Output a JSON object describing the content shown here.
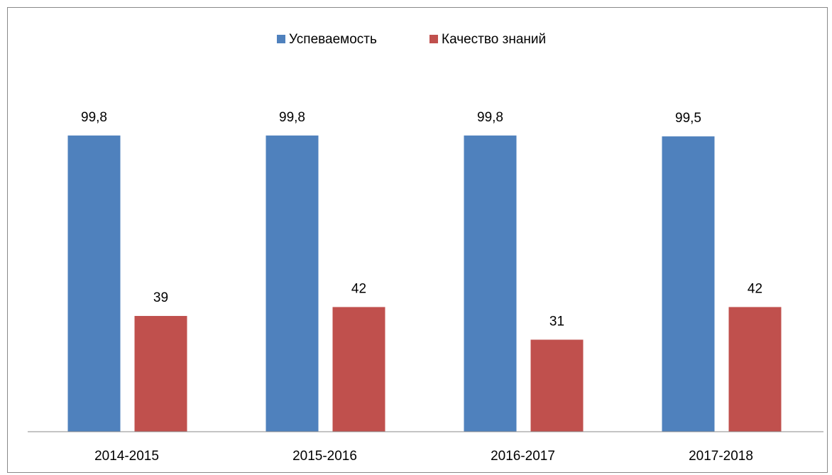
{
  "chart_data": {
    "type": "bar",
    "categories": [
      "2014-2015",
      "2015-2016",
      "2016-2017",
      "2017-2018"
    ],
    "series": [
      {
        "name": "Успеваемость",
        "color": "#4f81bd",
        "values": [
          99.8,
          99.8,
          99.8,
          99.5
        ],
        "value_labels": [
          "99,8",
          "99,8",
          "99,8",
          "99,5"
        ]
      },
      {
        "name": "Качество знаний",
        "color": "#c0504d",
        "values": [
          39,
          42,
          31,
          42
        ]
      }
    ],
    "ylim": [
      0,
      100
    ],
    "legend": "top"
  }
}
